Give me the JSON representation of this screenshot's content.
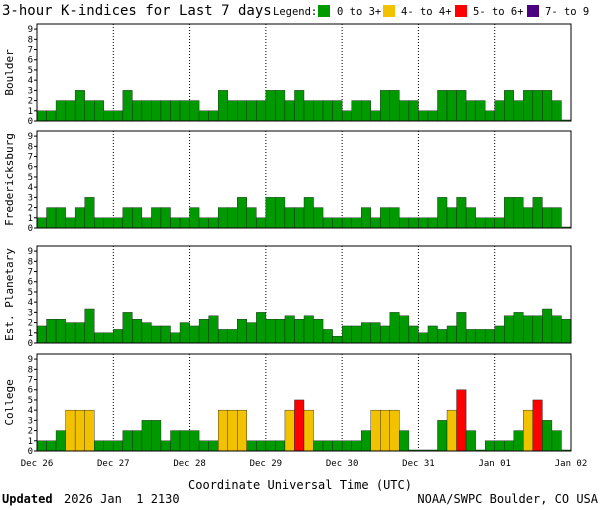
{
  "chart_data": {
    "type": "bar",
    "title": "3-hour K-indices for Last 7 days",
    "legend": {
      "label": "Legend:",
      "items": [
        {
          "text": "0 to 3+",
          "color": "#009900"
        },
        {
          "text": "4- to 4+",
          "color": "#f2c200"
        },
        {
          "text": "5- to 6+",
          "color": "#ff0000"
        },
        {
          "text": "7- to 9",
          "color": "#4b0082"
        }
      ]
    },
    "ylim": [
      0,
      9
    ],
    "yticks": [
      "0",
      "1",
      "2",
      "3",
      "4",
      "5",
      "6",
      "7",
      "8",
      "9"
    ],
    "xlabel": "Coordinate Universal Time (UTC)",
    "x_tick_labels": [
      "Dec 26",
      "Dec 27",
      "Dec 28",
      "Dec 29",
      "Dec 30",
      "Dec 31",
      "Jan 01",
      "Jan 02"
    ],
    "bins_per_day": 8,
    "panels": [
      {
        "name": "Boulder",
        "values": [
          1,
          1,
          2,
          2,
          3,
          2,
          2,
          1,
          1,
          3,
          2,
          2,
          2,
          2,
          2,
          2,
          2,
          1,
          1,
          3,
          2,
          2,
          2,
          2,
          3,
          3,
          2,
          3,
          2,
          2,
          2,
          2,
          1,
          2,
          2,
          1,
          3,
          3,
          2,
          2,
          1,
          1,
          3,
          3,
          3,
          2,
          2,
          1,
          2,
          3,
          2,
          3,
          3,
          3,
          2,
          0.1
        ]
      },
      {
        "name": "Fredericksburg",
        "values": [
          1,
          2,
          2,
          1,
          2,
          3,
          1,
          1,
          1,
          2,
          2,
          1,
          2,
          2,
          1,
          1,
          2,
          1,
          1,
          2,
          2,
          3,
          2,
          1,
          3,
          3,
          2,
          2,
          3,
          2,
          1,
          1,
          1,
          1,
          2,
          1,
          2,
          2,
          1,
          1,
          1,
          1,
          3,
          2,
          3,
          2,
          1,
          1,
          1,
          3,
          3,
          2,
          3,
          2,
          2,
          0.1
        ]
      },
      {
        "name": "Est. Planetary",
        "values": [
          1.67,
          2.33,
          2.33,
          2,
          2,
          3.33,
          1,
          1,
          1.33,
          3,
          2.33,
          2,
          1.67,
          1.67,
          1,
          2,
          1.67,
          2.33,
          2.67,
          1.33,
          1.33,
          2.33,
          2,
          3,
          2.33,
          2.33,
          2.67,
          2.33,
          2.67,
          2.33,
          1.33,
          0.67,
          1.67,
          1.67,
          2,
          2,
          1.67,
          3,
          2.67,
          1.67,
          1,
          1.67,
          1.33,
          1.67,
          3,
          1.33,
          1.33,
          1.33,
          1.67,
          2.67,
          3,
          2.67,
          2.67,
          3.33,
          2.67,
          2.33
        ]
      },
      {
        "name": "College",
        "values": [
          1,
          1,
          2,
          4,
          4,
          4,
          1,
          1,
          1,
          2,
          2,
          3,
          3,
          1,
          2,
          2,
          2,
          1,
          1,
          4,
          4,
          4,
          1,
          1,
          1,
          1,
          4,
          5,
          4,
          1,
          1,
          1,
          1,
          1,
          2,
          4,
          4,
          4,
          2,
          0.1,
          0.1,
          0.1,
          3,
          4,
          6,
          2,
          0.1,
          1,
          1,
          1,
          2,
          4,
          5,
          3,
          2,
          0.1
        ]
      }
    ]
  },
  "footer": {
    "updated_label": "Updated",
    "updated_value": "2026 Jan  1 2130",
    "source": "NOAA/SWPC Boulder, CO USA"
  }
}
